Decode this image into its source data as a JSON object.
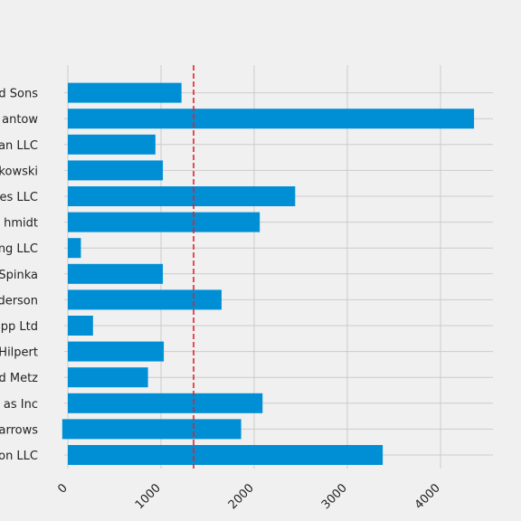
{
  "chart_data": {
    "type": "bar",
    "orientation": "horizontal",
    "categories": [
      "on LLC",
      "arrows",
      "as Inc",
      "d Metz",
      "Hilpert",
      "pp Ltd",
      "derson",
      "Spinka",
      "ng LLC",
      "hmidt",
      "es LLC",
      "kowski",
      "an LLC",
      "antow",
      "d Sons"
    ],
    "values": [
      3380,
      1860,
      2090,
      860,
      1030,
      270,
      1650,
      1020,
      140,
      2060,
      2440,
      1020,
      940,
      4360,
      1220
    ],
    "bar_start": [
      0,
      -60,
      0,
      0,
      0,
      0,
      0,
      0,
      0,
      0,
      0,
      0,
      0,
      0,
      0
    ],
    "x_ticks": [
      0,
      1000,
      2000,
      3000,
      4000
    ],
    "x_tick_labels": [
      "0",
      "1000",
      "2000",
      "3000",
      "4000"
    ],
    "xlim": [
      -80,
      4570
    ],
    "reference_line": {
      "value": 1350,
      "style": "dashed",
      "color": "#e5202a"
    },
    "title": "",
    "xlabel": "",
    "ylabel": "",
    "grid": true,
    "colors": {
      "bar": "#008fd5",
      "background": "#f0f0f0",
      "grid": "#cbcbcb"
    }
  }
}
